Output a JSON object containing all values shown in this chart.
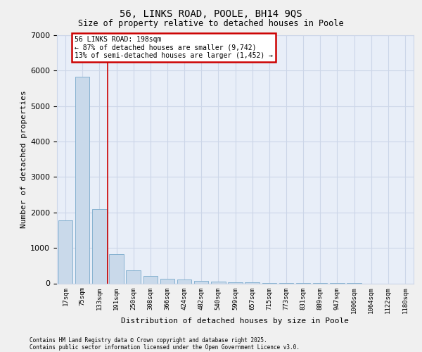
{
  "title_line1": "56, LINKS ROAD, POOLE, BH14 9QS",
  "title_line2": "Size of property relative to detached houses in Poole",
  "xlabel": "Distribution of detached houses by size in Poole",
  "ylabel": "Number of detached properties",
  "categories": [
    "17sqm",
    "75sqm",
    "133sqm",
    "191sqm",
    "250sqm",
    "308sqm",
    "366sqm",
    "424sqm",
    "482sqm",
    "540sqm",
    "599sqm",
    "657sqm",
    "715sqm",
    "773sqm",
    "831sqm",
    "889sqm",
    "947sqm",
    "1006sqm",
    "1064sqm",
    "1122sqm",
    "1180sqm"
  ],
  "values": [
    1780,
    5820,
    2090,
    820,
    370,
    210,
    130,
    100,
    75,
    55,
    35,
    20,
    10,
    5,
    3,
    2,
    1,
    1,
    0,
    0,
    0
  ],
  "bar_color": "#c9d9ea",
  "bar_edge_color": "#7aaacb",
  "annotation_box_text": "56 LINKS ROAD: 198sqm\n← 87% of detached houses are smaller (9,742)\n13% of semi-detached houses are larger (1,452) →",
  "annotation_box_facecolor": "#ffffff",
  "annotation_box_edgecolor": "#cc0000",
  "vline_color": "#cc0000",
  "grid_color": "#ccd6e8",
  "bg_color": "#e8eef8",
  "fig_bg_color": "#f0f0f0",
  "ylim": [
    0,
    7000
  ],
  "yticks": [
    0,
    1000,
    2000,
    3000,
    4000,
    5000,
    6000,
    7000
  ],
  "footer_line1": "Contains HM Land Registry data © Crown copyright and database right 2025.",
  "footer_line2": "Contains public sector information licensed under the Open Government Licence v3.0."
}
